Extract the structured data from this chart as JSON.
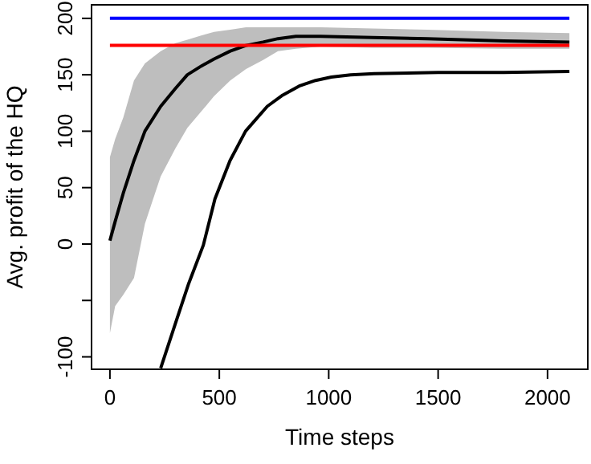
{
  "chart_data": {
    "type": "line",
    "xlabel": "Time steps",
    "ylabel": "Avg. profit of the HQ",
    "xlim": [
      -84,
      2184
    ],
    "ylim": [
      -111,
      212
    ],
    "xticks": [
      0,
      500,
      1000,
      1500,
      2000
    ],
    "yticks": [
      -100,
      {
        "value": -50,
        "label": null
      },
      0,
      50,
      100,
      150,
      200
    ],
    "marker": "none",
    "line_style": "solid",
    "series": [
      {
        "color": "#000000",
        "x": [
          0,
          24,
          61,
          110,
          160,
          232,
          300,
          354,
          420,
          476,
          550,
          622,
          700,
          768,
          850,
          963,
          1200,
          1450,
          1800,
          2100
        ],
        "values": [
          3,
          20,
          45,
          74,
          100,
          122,
          138,
          150,
          158,
          164,
          171,
          176,
          179,
          182,
          184,
          184,
          183,
          182,
          180,
          179
        ],
        "lower": [
          -79,
          -55,
          -45,
          -30,
          18,
          60,
          85,
          103,
          118,
          131,
          145,
          155,
          163,
          171,
          173,
          175,
          174,
          174,
          173,
          173
        ],
        "upper": [
          77,
          93,
          112,
          145,
          160,
          171,
          178,
          181,
          185,
          188,
          190,
          192,
          192,
          192,
          192,
          192,
          191,
          190,
          188,
          187
        ]
      },
      {
        "color": "#000000",
        "x": [
          232,
          300,
          360,
          427,
          480,
          549,
          620,
          719,
          790,
          865,
          940,
          1012,
          1100,
          1207,
          1500,
          1800,
          2100
        ],
        "values": [
          -110,
          -70,
          -35,
          -1,
          40,
          74,
          100,
          122,
          132,
          140,
          145,
          148,
          150,
          151,
          152,
          152,
          153
        ]
      },
      {
        "color": "#0000ff",
        "x": [
          0,
          2100
        ],
        "values": [
          200,
          200
        ]
      },
      {
        "color": "#ff0000",
        "x": [
          0,
          2100
        ],
        "values": [
          176,
          176
        ]
      }
    ]
  }
}
